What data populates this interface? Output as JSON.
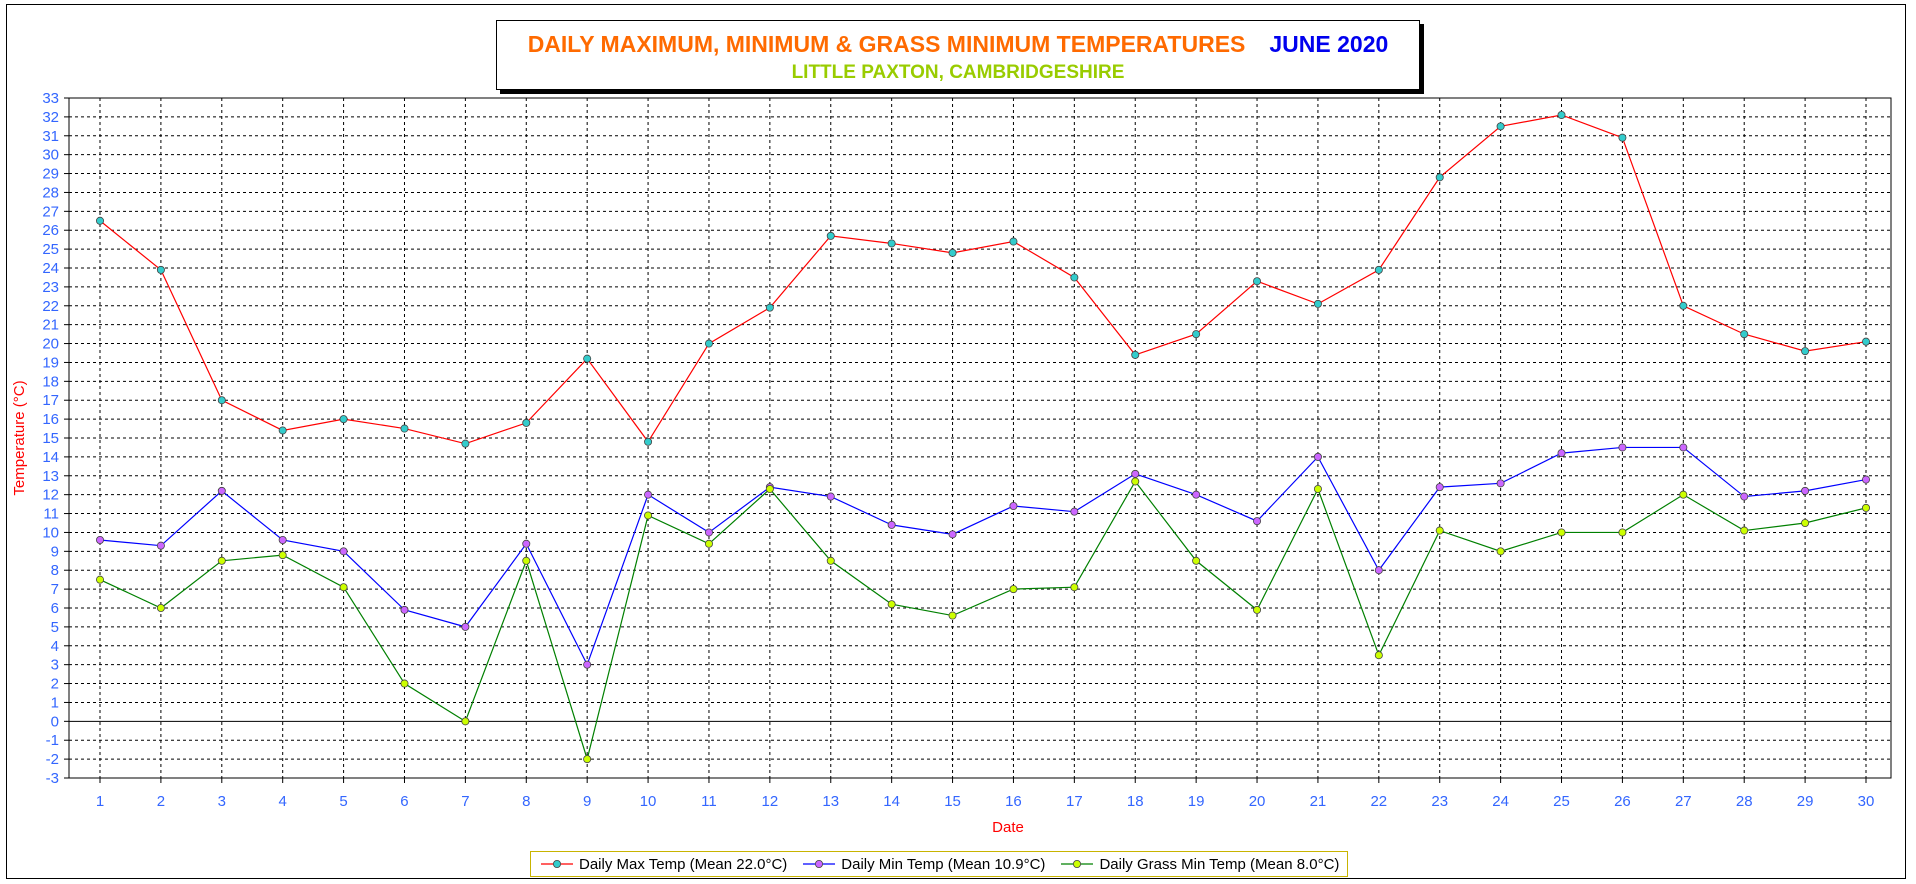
{
  "chart_data": {
    "type": "line",
    "title": "DAILY MAXIMUM, MINIMUM & GRASS MINIMUM TEMPERATURES",
    "title_period": "JUNE 2020",
    "subtitle": "LITTLE PAXTON, CAMBRIDGESHIRE",
    "xlabel": "Date",
    "ylabel": "Temperature (°C)",
    "ylim": [
      -3,
      33
    ],
    "xlim": [
      1,
      30
    ],
    "grid": true,
    "legend_position": "bottom",
    "x": [
      1,
      2,
      3,
      4,
      5,
      6,
      7,
      8,
      9,
      10,
      11,
      12,
      13,
      14,
      15,
      16,
      17,
      18,
      19,
      20,
      21,
      22,
      23,
      24,
      25,
      26,
      27,
      28,
      29,
      30
    ],
    "y_ticks": [
      -3,
      -2,
      -1,
      0,
      1,
      2,
      3,
      4,
      5,
      6,
      7,
      8,
      9,
      10,
      11,
      12,
      13,
      14,
      15,
      16,
      17,
      18,
      19,
      20,
      21,
      22,
      23,
      24,
      25,
      26,
      27,
      28,
      29,
      30,
      31,
      32,
      33
    ],
    "series": [
      {
        "name": "Daily Max Temp (Mean 22.0°C)",
        "line_color": "#ff0000",
        "marker_color": "#33cccc",
        "values": [
          26.5,
          23.9,
          17.0,
          15.4,
          16.0,
          15.5,
          14.7,
          15.8,
          19.2,
          14.8,
          20.0,
          21.9,
          25.7,
          25.3,
          24.8,
          25.4,
          23.5,
          19.4,
          20.5,
          23.3,
          22.1,
          23.9,
          28.8,
          31.5,
          32.1,
          30.9,
          22.0,
          20.5,
          19.6,
          20.1
        ]
      },
      {
        "name": "Daily Min Temp (Mean 10.9°C)",
        "line_color": "#0000ff",
        "marker_color": "#cc66ff",
        "values": [
          9.6,
          9.3,
          12.2,
          9.6,
          9.0,
          5.9,
          5.0,
          9.4,
          3.0,
          12.0,
          10.0,
          12.4,
          11.9,
          10.4,
          9.9,
          11.4,
          11.1,
          13.1,
          12.0,
          10.6,
          14.0,
          8.0,
          12.4,
          12.6,
          14.2,
          14.5,
          14.5,
          11.9,
          12.2,
          12.8
        ]
      },
      {
        "name": "Daily Grass Min Temp (Mean 8.0°C)",
        "line_color": "#008000",
        "marker_color": "#ccff00",
        "values": [
          7.5,
          6.0,
          8.5,
          8.8,
          7.1,
          2.0,
          0.0,
          8.5,
          -2.0,
          10.9,
          9.4,
          12.3,
          8.5,
          6.2,
          5.6,
          7.0,
          7.1,
          12.7,
          8.5,
          5.9,
          12.3,
          3.5,
          10.1,
          9.0,
          10.0,
          10.0,
          12.0,
          10.1,
          10.5,
          11.3
        ]
      }
    ]
  }
}
